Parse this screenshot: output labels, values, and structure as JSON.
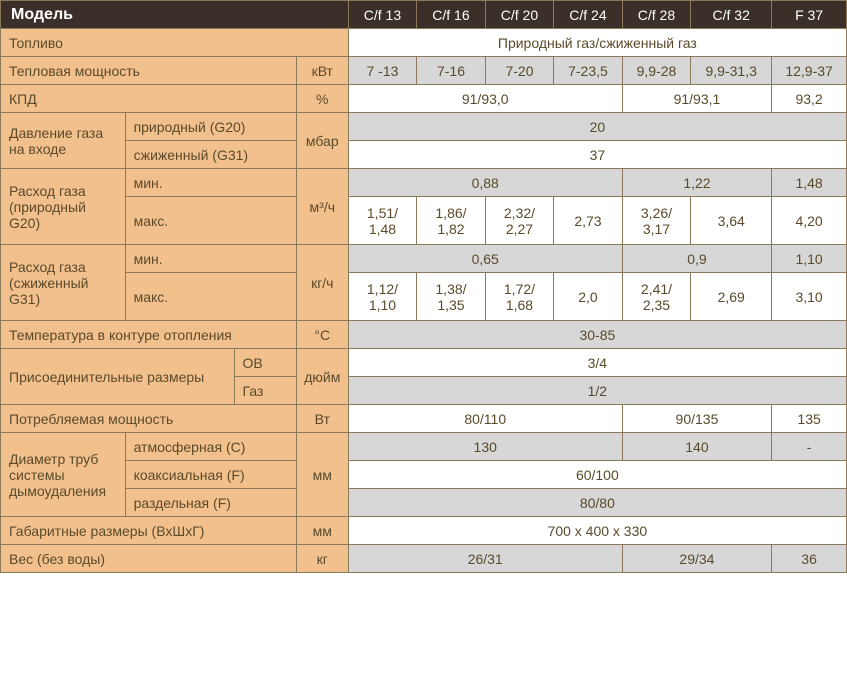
{
  "header": {
    "title": "Модель",
    "cols": [
      "C/f 13",
      "C/f 16",
      "C/f 20",
      "C/f 24",
      "C/f 28",
      "C/f 32",
      "F 37"
    ]
  },
  "labels": {
    "fuel": "Топливо",
    "thermal": "Тепловая мощность",
    "kpd": "КПД",
    "gasPressure": "Давление газа на входе",
    "natural": "природный (G20)",
    "liquefied": "сжиженный (G31)",
    "gasConsNat": "Расход газа (природный G20)",
    "gasConsLiq": "Расход газа (сжиженный G31)",
    "min": "мин.",
    "max": "макс.",
    "tempHeat": "Температура в контуре отопления",
    "connSizes": "Присоединительные размеры",
    "ov": "ОВ",
    "gas": "Газ",
    "powerCons": "Потребляемая мощность",
    "flueDiam": "Диаметр труб системы дымоудаления",
    "atmos": "атмосферная (С)",
    "coax": "коаксиальная (F)",
    "split": "раздельная (F)",
    "dims": "Габаритные размеры (ВхШхГ)",
    "weight": "Вес (без воды)"
  },
  "units": {
    "kwt": "кВт",
    "pct": "%",
    "mbar": "мбар",
    "m3h": "м³/ч",
    "kgh": "кг/ч",
    "degc": "°C",
    "inch": "дюйм",
    "watt": "Вт",
    "mm": "мм",
    "kg": "кг"
  },
  "values": {
    "fuel": "Природный газ/сжиженный газ",
    "thermal": [
      "7 -13",
      "7-16",
      "7-20",
      "7-23,5",
      "9,9-28",
      "9,9-31,3",
      "12,9-37"
    ],
    "kpd": {
      "a": "91/93,0",
      "b": "91/93,1",
      "c": "93,2"
    },
    "press": {
      "nat": "20",
      "liq": "37"
    },
    "consNatMin": {
      "a": "0,88",
      "b": "1,22",
      "c": "1,48"
    },
    "consNatMax": [
      "1,51/\n1,48",
      "1,86/\n1,82",
      "2,32/\n2,27",
      "2,73",
      "3,26/\n3,17",
      "3,64",
      "4,20"
    ],
    "consLiqMin": {
      "a": "0,65",
      "b": "0,9",
      "c": "1,10"
    },
    "consLiqMax": [
      "1,12/\n1,10",
      "1,38/\n1,35",
      "1,72/\n1,68",
      "2,0",
      "2,41/\n2,35",
      "2,69",
      "3,10"
    ],
    "temp": "30-85",
    "conn": {
      "ov": "3/4",
      "gas": "1/2"
    },
    "power": {
      "a": "80/110",
      "b": "90/135",
      "c": "135"
    },
    "flue": {
      "atmos_a": "130",
      "atmos_b": "140",
      "atmos_c": "-",
      "coax": "60/100",
      "split": "80/80"
    },
    "dims": "700 х 400 х 330",
    "weight": {
      "a": "26/31",
      "b": "29/34",
      "c": "36"
    }
  }
}
